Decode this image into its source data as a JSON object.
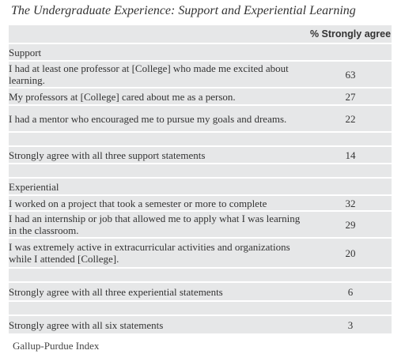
{
  "title": "The Undergraduate Experience: Support and Experiential Learning",
  "source": "Gallup-Purdue Index",
  "chart_data": {
    "type": "table",
    "column_header": "% Strongly agree",
    "sections": [
      {
        "heading": "Support",
        "rows": [
          {
            "label": "I had at least one professor at [College] who made me excited about learning.",
            "value": "63"
          },
          {
            "label": "My professors at [College] cared about me as a person.",
            "value": "27"
          },
          {
            "label": "I had a mentor who encouraged me to pursue my goals and dreams.",
            "value": "22"
          }
        ],
        "summary": {
          "label": "Strongly agree with all three support statements",
          "value": "14"
        }
      },
      {
        "heading": "Experiential",
        "rows": [
          {
            "label": "I worked on a project that took a semester or more to complete",
            "value": "32"
          },
          {
            "label": "I had an internship or job that allowed me to apply what I was learning in the classroom.",
            "value": "29"
          },
          {
            "label": "I was extremely active in extracurricular activities and organizations while I attended [College].",
            "value": "20"
          }
        ],
        "summary": {
          "label": "Strongly agree with all three experiential statements",
          "value": "6"
        }
      }
    ],
    "overall": {
      "label": "Strongly agree with all six statements",
      "value": "3"
    }
  }
}
